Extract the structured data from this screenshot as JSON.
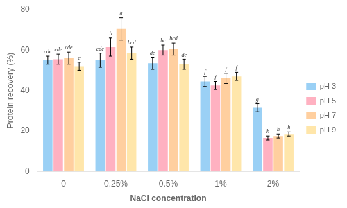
{
  "chart_data": {
    "type": "bar",
    "xlabel": "NaCl concentration",
    "ylabel": "Protein recovery (%)",
    "categories": [
      "0",
      "0.25%",
      "0.5%",
      "1%",
      "2%"
    ],
    "series": [
      {
        "name": "pH 3",
        "values": [
          55.0,
          55.0,
          53.5,
          44.5,
          31.5
        ],
        "errors": [
          2.0,
          3.5,
          3.0,
          2.5,
          2.0
        ],
        "letters": [
          "cde",
          "cde",
          "de",
          "f",
          "g"
        ]
      },
      {
        "name": "pH 5",
        "values": [
          55.5,
          61.5,
          60.0,
          42.5,
          16.5
        ],
        "errors": [
          2.5,
          4.5,
          2.5,
          2.0,
          1.0
        ],
        "letters": [
          "cde",
          "b",
          "bc",
          "f",
          "h"
        ]
      },
      {
        "name": "pH 7",
        "values": [
          56.0,
          70.5,
          60.5,
          46.0,
          17.5
        ],
        "errors": [
          3.0,
          5.5,
          3.0,
          2.5,
          1.0
        ],
        "letters": [
          "cde",
          "a",
          "bcd",
          "f",
          "h"
        ]
      },
      {
        "name": "pH 9",
        "values": [
          52.0,
          58.5,
          53.0,
          47.0,
          18.5
        ],
        "errors": [
          2.0,
          3.0,
          2.5,
          2.0,
          1.0
        ],
        "letters": [
          "e",
          "bcd",
          "de",
          "f",
          "h"
        ]
      }
    ],
    "ylim": [
      0,
      80
    ],
    "yticks": [
      0,
      20,
      40,
      60,
      80
    ],
    "grid": false,
    "legend": "right"
  }
}
